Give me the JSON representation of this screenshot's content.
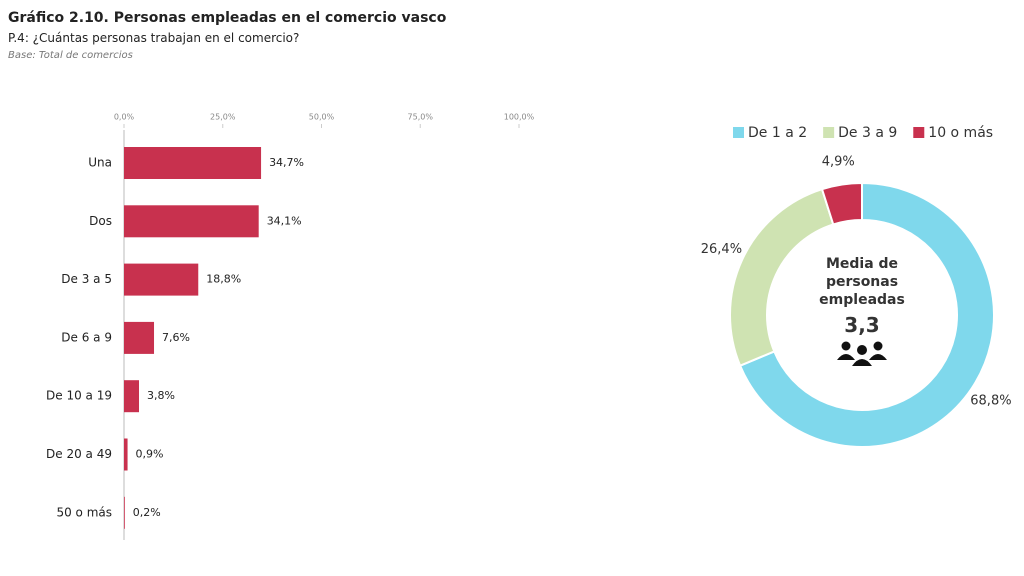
{
  "header": {
    "title": "Gráfico 2.10. Personas empleadas en el comercio vasco",
    "subtitle": "P.4: ¿Cuántas personas trabajan en el comercio?",
    "base": "Base: Total de comercios"
  },
  "chart_data": [
    {
      "type": "hbar",
      "categories": [
        "Una",
        "Dos",
        "De 3 a 5",
        "De 6 a 9",
        "De 10 a 19",
        "De 20 a 49",
        "50 o más"
      ],
      "values": [
        34.7,
        34.1,
        18.8,
        7.6,
        3.8,
        0.9,
        0.2
      ],
      "value_labels": [
        "34,7%",
        "34,1%",
        "18,8%",
        "7,6%",
        "3,8%",
        "0,9%",
        "0,2%"
      ],
      "color": "#c8314e",
      "xlim": [
        0,
        100
      ],
      "xticks": [
        {
          "value": 0,
          "label": "0,0%"
        },
        {
          "value": 25,
          "label": "25,0%"
        },
        {
          "value": 50,
          "label": "50,0%"
        },
        {
          "value": 75,
          "label": "75,0%"
        },
        {
          "value": 100,
          "label": "100,0%"
        }
      ]
    },
    {
      "type": "donut",
      "categories": [
        "De 1 a 2",
        "De 3 a 9",
        "10 o más"
      ],
      "values": [
        68.8,
        26.4,
        4.9
      ],
      "value_labels": [
        "68,8%",
        "26,4%",
        "4,9%"
      ],
      "colors": [
        "#7fd8ec",
        "#cfe3b2",
        "#c8314e"
      ],
      "center_label": "Media de personas empleadas",
      "center_value": "3,3"
    }
  ]
}
